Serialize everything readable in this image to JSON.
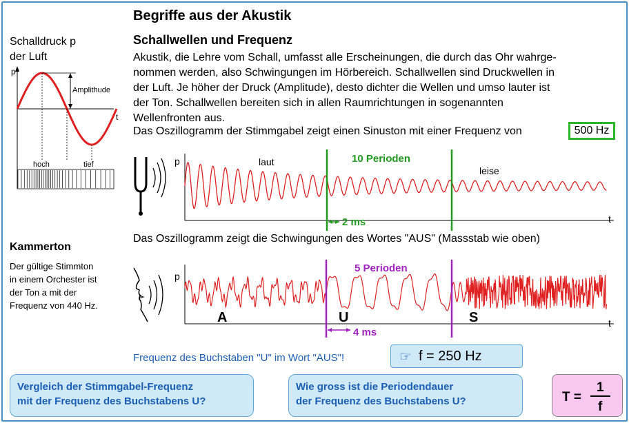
{
  "title": "Begriffe aus der Akustik",
  "subtitle": "Schallwellen und Frequenz",
  "body_lines": [
    "Akustik, die Lehre vom Schall, umfasst alle Erscheinungen, die durch das Ohr wahrge-",
    "nommen werden, also Schwingungen im Hörbereich. Schallwellen sind Druckwellen in",
    "der Luft. Je höher der Druck (Amplitude), desto dichter die Wellen und umso lauter ist",
    "der Ton. Schallwellen bereiten sich in allen Raumrichtungen in sogenannten",
    "Wellenfronten aus."
  ],
  "oscillogram_intro": "Das Oszillogramm der Stimmgabel zeigt einen Sinuston mit einer Frequenz von",
  "tuning_fork_frequency": "500 Hz",
  "left_diagram": {
    "heading_line1": "Schalldruck p",
    "heading_line2": "der Luft",
    "axis_p": "p",
    "axis_t": "t",
    "amplitude": "Amplithude",
    "hoch": "hoch",
    "tief": "tief"
  },
  "kammerton": {
    "title": "Kammerton",
    "text_lines": [
      "Der gültige Stimmton",
      "in einem Orchester ist",
      "der Ton a mit der",
      "Frequenz von 440 Hz."
    ]
  },
  "wave1": {
    "axis_p": "p",
    "axis_t": "t",
    "laut": "laut",
    "leise": "leise",
    "periods": "10 Perioden",
    "duration": "2 ms"
  },
  "aus_caption": "Das Oszillogramm zeigt die Schwingungen des Wortes \"AUS\" (Massstab wie oben)",
  "wave2": {
    "axis_p": "p",
    "axis_t": "t",
    "periods": "5 Perioden",
    "duration": "4 ms",
    "letter_a": "A",
    "letter_u": "U",
    "letter_s": "S"
  },
  "question_u": "Frequenz des Buchstaben \"U\" im Wort \"AUS\"!",
  "answer_u": "f = 250 Hz",
  "hand_icon": "pointing-hand-icon",
  "box_left": [
    "Vergleich der Stimmgabel-Frequenz",
    "mit der Frequenz des Buchstabens U?"
  ],
  "box_middle": [
    "Wie gross ist die Periodendauer",
    "der Frequenz des Buchstabens U?"
  ],
  "formula": {
    "lhs": "T =",
    "numerator": "1",
    "denominator": "f"
  },
  "colors": {
    "wave": "#e02020",
    "green": "#1f9a1f",
    "purple": "#a020c0",
    "frame": "#4a90c8",
    "question": "#1a5fb4",
    "answer_bg": "#cfe9f8",
    "formula_bg": "#f8c8f0"
  }
}
